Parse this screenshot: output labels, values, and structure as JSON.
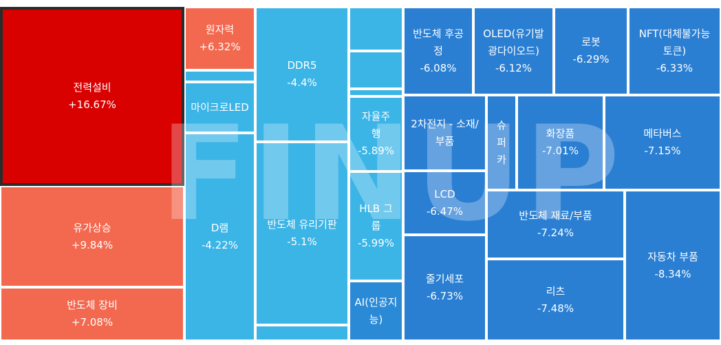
{
  "watermark": "FINUP",
  "colors": {
    "strong_up": "#d90000",
    "up": "#f26950",
    "light_blue": "#3bb4e6",
    "mid_blue": "#2b8ad6",
    "blue": "#2a7fd3"
  },
  "chart_data": {
    "type": "treemap",
    "unit": "%",
    "items": [
      {
        "name": "전력설비",
        "change": "+16.67%",
        "value": 16.67
      },
      {
        "name": "유가상승",
        "change": "+9.84%",
        "value": 9.84
      },
      {
        "name": "반도체 장비",
        "change": "+7.08%",
        "value": 7.08
      },
      {
        "name": "원자력",
        "change": "+6.32%",
        "value": 6.32
      },
      {
        "name": "",
        "change": "",
        "value": null
      },
      {
        "name": "마이크로LED",
        "change": "",
        "value": null
      },
      {
        "name": "D램",
        "change": "-4.22%",
        "value": -4.22
      },
      {
        "name": "",
        "change": "",
        "value": null
      },
      {
        "name": "DDR5",
        "change": "-4.4%",
        "value": -4.4
      },
      {
        "name": "반도체 유리기판",
        "change": "-5.1%",
        "value": -5.1
      },
      {
        "name": "",
        "change": "",
        "value": null
      },
      {
        "name": "",
        "change": "",
        "value": null
      },
      {
        "name": "",
        "change": "",
        "value": null
      },
      {
        "name": "",
        "change": "",
        "value": null
      },
      {
        "name": "자율주행",
        "change": "-5.89%",
        "value": -5.89
      },
      {
        "name": "HLB 그룹",
        "change": "-5.99%",
        "value": -5.99
      },
      {
        "name": "AI(인공지능)",
        "change": "",
        "value": null
      },
      {
        "name": "반도체 후공정",
        "change": "-6.08%",
        "value": -6.08
      },
      {
        "name": "OLED(유기발광다이오드)",
        "change": "-6.12%",
        "value": -6.12
      },
      {
        "name": "로봇",
        "change": "-6.29%",
        "value": -6.29
      },
      {
        "name": "NFT(대체불가능토큰)",
        "change": "-6.33%",
        "value": -6.33
      },
      {
        "name": "",
        "change": "",
        "value": null
      },
      {
        "name": "2차전지 - 소재/부품",
        "change": "",
        "value": null
      },
      {
        "name": "슈퍼카",
        "change": "",
        "value": null
      },
      {
        "name": "화장품",
        "change": "-7.01%",
        "value": -7.01
      },
      {
        "name": "메타버스",
        "change": "-7.15%",
        "value": -7.15
      },
      {
        "name": "LCD",
        "change": "-6.47%",
        "value": -6.47
      },
      {
        "name": "반도체 재료/부품",
        "change": "-7.24%",
        "value": -7.24
      },
      {
        "name": "자동차 부품",
        "change": "-8.34%",
        "value": -8.34
      },
      {
        "name": "줄기세포",
        "change": "-6.73%",
        "value": -6.73
      },
      {
        "name": "리츠",
        "change": "-7.48%",
        "value": -7.48
      }
    ]
  }
}
